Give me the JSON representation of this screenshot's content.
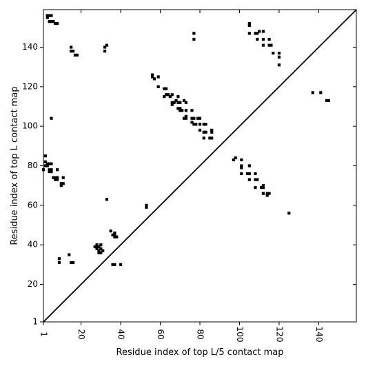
{
  "chart_data": {
    "type": "scatter",
    "title": "",
    "xlabel": "Residue index of top L/5 contact map",
    "ylabel": "Residue index of top L contact map",
    "xlim": [
      1,
      159
    ],
    "ylim": [
      1,
      159
    ],
    "xticks": [
      1,
      20,
      40,
      60,
      80,
      100,
      120,
      140
    ],
    "yticks": [
      1,
      20,
      40,
      60,
      80,
      100,
      120,
      140
    ],
    "grid": false,
    "legend": "none",
    "diagonal": true,
    "marker": "square",
    "colors": {
      "points": "#000000",
      "diagonal": "#000000",
      "frame": "#000000",
      "background": "#ffffff"
    },
    "upper_series": {
      "points": [
        [
          3,
          156
        ],
        [
          4,
          156
        ],
        [
          5,
          156
        ],
        [
          4,
          153
        ],
        [
          5,
          153
        ],
        [
          6,
          153
        ],
        [
          7,
          152
        ],
        [
          8,
          152
        ],
        [
          3,
          155
        ],
        [
          15,
          140
        ],
        [
          15,
          138
        ],
        [
          16,
          138
        ],
        [
          17,
          136
        ],
        [
          18,
          136
        ],
        [
          32,
          140
        ],
        [
          32,
          138
        ],
        [
          33,
          141
        ],
        [
          56,
          126
        ],
        [
          56,
          125
        ],
        [
          57,
          124
        ],
        [
          59,
          125
        ],
        [
          59,
          120
        ],
        [
          62,
          119
        ],
        [
          63,
          119
        ],
        [
          63,
          116
        ],
        [
          64,
          116
        ],
        [
          62,
          115
        ],
        [
          65,
          115
        ],
        [
          66,
          116
        ],
        [
          66,
          112
        ],
        [
          67,
          112
        ],
        [
          66,
          111
        ],
        [
          68,
          113
        ],
        [
          69,
          112
        ],
        [
          70,
          112
        ],
        [
          69,
          109
        ],
        [
          70,
          109
        ],
        [
          70,
          108
        ],
        [
          71,
          108
        ],
        [
          69,
          115
        ],
        [
          72,
          113
        ],
        [
          73,
          112
        ],
        [
          73,
          108
        ],
        [
          72,
          104
        ],
        [
          73,
          105
        ],
        [
          73,
          104
        ],
        [
          76,
          108
        ],
        [
          76,
          104
        ],
        [
          77,
          104
        ],
        [
          77,
          101
        ],
        [
          76,
          102
        ],
        [
          78,
          101
        ],
        [
          79,
          104
        ],
        [
          80,
          104
        ],
        [
          80,
          101
        ],
        [
          80,
          98
        ],
        [
          82,
          101
        ],
        [
          83,
          101
        ],
        [
          82,
          97
        ],
        [
          83,
          97
        ],
        [
          82,
          94
        ],
        [
          85,
          94
        ],
        [
          86,
          94
        ],
        [
          86,
          97
        ],
        [
          86,
          98
        ],
        [
          77,
          147
        ],
        [
          77,
          144
        ],
        [
          105,
          152
        ],
        [
          105,
          151
        ],
        [
          105,
          147
        ],
        [
          108,
          147
        ],
        [
          109,
          147
        ],
        [
          110,
          148
        ],
        [
          109,
          144
        ],
        [
          112,
          148
        ],
        [
          112,
          144
        ],
        [
          112,
          141
        ],
        [
          115,
          144
        ],
        [
          115,
          141
        ],
        [
          116,
          141
        ],
        [
          117,
          137
        ],
        [
          120,
          137
        ],
        [
          120,
          135
        ],
        [
          120,
          131
        ],
        [
          137,
          117
        ],
        [
          141,
          117
        ],
        [
          144,
          113
        ],
        [
          145,
          113
        ]
      ]
    },
    "lower_series": {
      "points": [
        [
          2,
          85
        ],
        [
          2,
          82
        ],
        [
          3,
          81
        ],
        [
          2,
          80
        ],
        [
          3,
          80
        ],
        [
          1,
          78
        ],
        [
          4,
          81
        ],
        [
          5,
          81
        ],
        [
          4,
          78
        ],
        [
          5,
          78
        ],
        [
          4,
          77
        ],
        [
          5,
          77
        ],
        [
          8,
          78
        ],
        [
          5,
          104
        ],
        [
          6,
          74
        ],
        [
          7,
          74
        ],
        [
          8,
          74
        ],
        [
          7,
          73
        ],
        [
          8,
          73
        ],
        [
          11,
          74
        ],
        [
          10,
          71
        ],
        [
          11,
          71
        ],
        [
          10,
          70
        ],
        [
          9,
          33
        ],
        [
          9,
          31
        ],
        [
          14,
          35
        ],
        [
          15,
          31
        ],
        [
          16,
          31
        ],
        [
          27,
          39
        ],
        [
          28,
          39
        ],
        [
          29,
          39
        ],
        [
          28,
          38
        ],
        [
          30,
          38
        ],
        [
          29,
          37
        ],
        [
          29,
          36
        ],
        [
          30,
          36
        ],
        [
          30,
          40
        ],
        [
          31,
          37
        ],
        [
          28,
          40
        ],
        [
          33,
          63
        ],
        [
          35,
          47
        ],
        [
          36,
          45
        ],
        [
          37,
          46
        ],
        [
          37,
          45
        ],
        [
          38,
          44
        ],
        [
          37,
          44
        ],
        [
          36,
          30
        ],
        [
          37,
          30
        ],
        [
          40,
          30
        ],
        [
          53,
          60
        ],
        [
          53,
          59
        ],
        [
          97,
          83
        ],
        [
          98,
          84
        ],
        [
          101,
          83
        ],
        [
          101,
          80
        ],
        [
          101,
          79
        ],
        [
          101,
          76
        ],
        [
          104,
          76
        ],
        [
          105,
          76
        ],
        [
          105,
          80
        ],
        [
          105,
          73
        ],
        [
          108,
          76
        ],
        [
          108,
          73
        ],
        [
          109,
          73
        ],
        [
          108,
          69
        ],
        [
          111,
          69
        ],
        [
          112,
          69
        ],
        [
          112,
          70
        ],
        [
          112,
          66
        ],
        [
          114,
          66
        ],
        [
          115,
          66
        ],
        [
          114,
          65
        ],
        [
          125,
          56
        ]
      ]
    }
  }
}
